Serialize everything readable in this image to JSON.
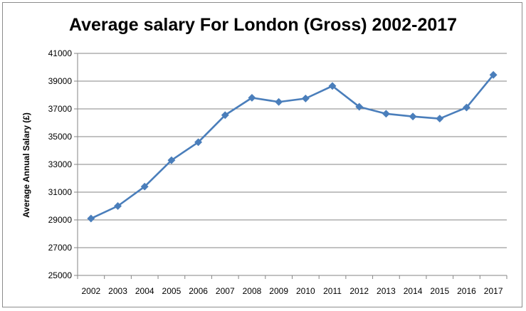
{
  "chart_data": {
    "type": "line",
    "title": "Average salary For London (Gross) 2002-2017",
    "xlabel": "",
    "ylabel": "Average Annual Salary (£)",
    "ylim": [
      25000,
      41000
    ],
    "yticks": [
      25000,
      27000,
      29000,
      31000,
      33000,
      35000,
      37000,
      39000,
      41000
    ],
    "grid": true,
    "categories": [
      "2002",
      "2003",
      "2004",
      "2005",
      "2006",
      "2007",
      "2008",
      "2009",
      "2010",
      "2011",
      "2012",
      "2013",
      "2014",
      "2015",
      "2016",
      "2017"
    ],
    "series": [
      {
        "color": "#4a7ebb",
        "values": [
          29100,
          30000,
          31400,
          33300,
          34600,
          36550,
          37800,
          37500,
          37750,
          38650,
          37150,
          36650,
          36450,
          36300,
          37100,
          39450
        ]
      }
    ]
  }
}
